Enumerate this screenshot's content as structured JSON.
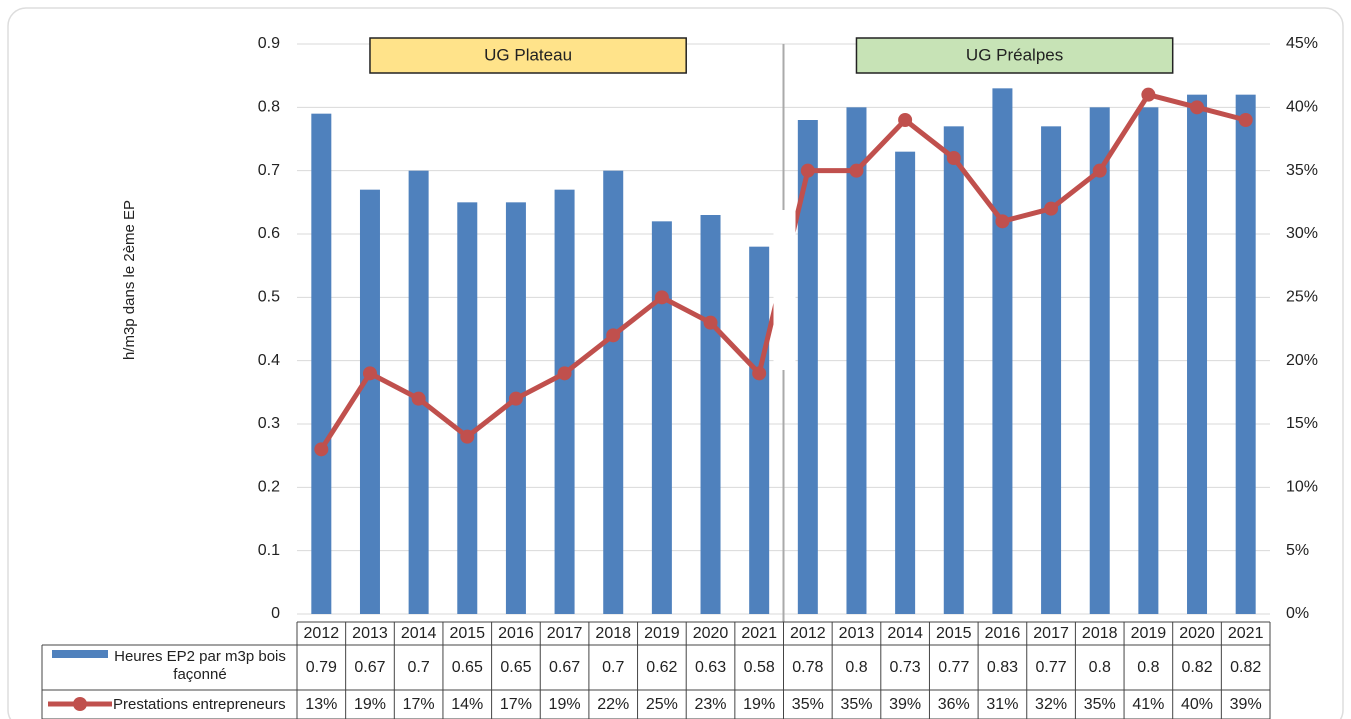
{
  "chart_data": {
    "type": "bar+line",
    "y_label": "h/m3p dans le 2ème EP",
    "groups": [
      {
        "label": "UG Plateau",
        "color": "#ffe38a"
      },
      {
        "label": "UG Préalpes",
        "color": "#c7e3b6"
      }
    ],
    "categories": [
      "2012",
      "2013",
      "2014",
      "2015",
      "2016",
      "2017",
      "2018",
      "2019",
      "2020",
      "2021",
      "2012",
      "2013",
      "2014",
      "2015",
      "2016",
      "2017",
      "2018",
      "2019",
      "2020",
      "2021"
    ],
    "series": [
      {
        "name": "Heures EP2 par m3p bois façonné",
        "type": "bar",
        "color": "#4f81bd",
        "values": [
          0.79,
          0.67,
          0.7,
          0.65,
          0.65,
          0.67,
          0.7,
          0.62,
          0.63,
          0.58,
          0.78,
          0.8,
          0.73,
          0.77,
          0.83,
          0.77,
          0.8,
          0.8,
          0.82,
          0.82
        ]
      },
      {
        "name": "Prestations entrepreneurs",
        "type": "line",
        "axis": "y2",
        "color": "#c0504d",
        "values": [
          13,
          19,
          17,
          14,
          17,
          19,
          22,
          25,
          23,
          19,
          35,
          35,
          39,
          36,
          31,
          32,
          35,
          41,
          40,
          39
        ],
        "value_labels": [
          "13%",
          "19%",
          "17%",
          "14%",
          "17%",
          "19%",
          "22%",
          "25%",
          "23%",
          "19%",
          "35%",
          "35%",
          "39%",
          "36%",
          "31%",
          "32%",
          "35%",
          "41%",
          "40%",
          "39%"
        ]
      }
    ],
    "ylim": [
      0,
      0.9
    ],
    "yticks": [
      0,
      0.1,
      0.2,
      0.3,
      0.4,
      0.5,
      0.6,
      0.7,
      0.8,
      0.9
    ],
    "y2lim": [
      0,
      45
    ],
    "y2ticks": [
      {
        "value": 0,
        "label": "0%"
      },
      {
        "value": 5,
        "label": "5%"
      },
      {
        "value": 10,
        "label": "10%"
      },
      {
        "value": 15,
        "label": "15%"
      },
      {
        "value": 20,
        "label": "20%"
      },
      {
        "value": 25,
        "label": "25%"
      },
      {
        "value": 30,
        "label": "30%"
      },
      {
        "value": 35,
        "label": "35%"
      },
      {
        "value": 40,
        "label": "40%"
      },
      {
        "value": 45,
        "label": "45%"
      }
    ],
    "grid": true
  }
}
